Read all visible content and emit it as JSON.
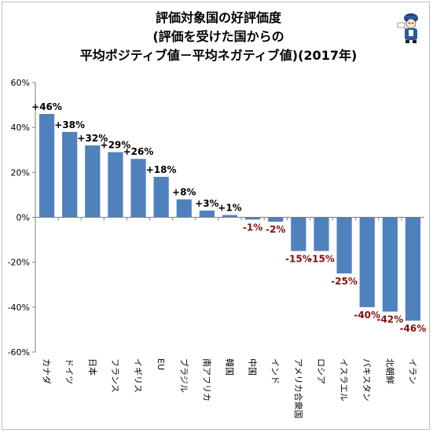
{
  "title": {
    "line1": "評価対象国の好評価度",
    "line2": "(評価を受けた国からの",
    "line3": "平均ポジティブ値－平均ネガティブ値)(2017年)"
  },
  "colors": {
    "bar": "#4f81bd",
    "positive_label": "#000000",
    "negative_label": "#7f1010",
    "axis": "#7f7f7f"
  },
  "chart_data": {
    "type": "bar",
    "categories": [
      "カナダ",
      "ドイツ",
      "日本",
      "フランス",
      "イギリス",
      "EU",
      "ブラジル",
      "南アフリカ",
      "韓国",
      "中国",
      "インド",
      "アメリカ合衆国",
      "ロシア",
      "イスラエル",
      "パキスタン",
      "北朝鮮",
      "イラン"
    ],
    "values": [
      46,
      38,
      32,
      29,
      26,
      18,
      8,
      3,
      1,
      -1,
      -2,
      -15,
      -15,
      -25,
      -40,
      -42,
      -46
    ],
    "data_labels": [
      "+46%",
      "+38%",
      "+32%",
      "+29%",
      "+26%",
      "+18%",
      "+8%",
      "+3%",
      "+1%",
      "-1%",
      "-2%",
      "-15%",
      "-15%",
      "-25%",
      "-40%",
      "-42%",
      "-46%"
    ],
    "title": "評価対象国の好評価度(評価を受けた国からの平均ポジティブ値－平均ネガティブ値)(2017年)",
    "xlabel": "",
    "ylabel": "",
    "ylim": [
      -60,
      60
    ],
    "yticks": [
      60,
      40,
      20,
      0,
      -20,
      -40,
      -60
    ],
    "ytick_labels": [
      "60%",
      "40%",
      "20%",
      "0%",
      "-20%",
      "-40%",
      "-60%"
    ],
    "grid": false,
    "legend": "none"
  }
}
